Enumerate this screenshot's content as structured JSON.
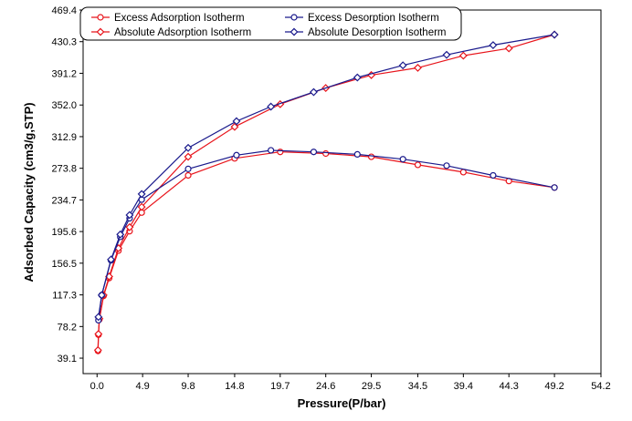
{
  "chart_data": {
    "type": "line",
    "title": "",
    "xlabel": "Pressure(P/bar)",
    "ylabel": "Adsorbed Capacity (cm3/g,STP)",
    "xlim": [
      -1.5,
      54.2
    ],
    "ylim": [
      20,
      469.4
    ],
    "x_ticks": [
      0.0,
      4.9,
      9.8,
      14.8,
      19.7,
      24.6,
      29.5,
      34.5,
      39.4,
      44.3,
      49.2,
      54.2
    ],
    "x_tick_labels": [
      "0.0",
      "4.9",
      "9.8",
      "14.8",
      "19.7",
      "24.6",
      "29.5",
      "34.5",
      "39.4",
      "44.3",
      "49.2",
      "54.2"
    ],
    "y_ticks": [
      39.1,
      78.2,
      117.3,
      156.5,
      195.6,
      234.7,
      273.8,
      312.9,
      352.0,
      391.2,
      430.3,
      469.4
    ],
    "y_tick_labels": [
      "39.1",
      "78.2",
      "117.3",
      "156.5",
      "195.6",
      "234.7",
      "273.8",
      "312.9",
      "352.0",
      "391.2",
      "430.3",
      "469.4"
    ],
    "legend_position": "top-left",
    "grid": false,
    "series": [
      {
        "name": "Excess Adsorption Isotherm",
        "color": "#e8141b",
        "marker": "circle",
        "x": [
          0.1,
          0.15,
          0.25,
          0.7,
          1.3,
          2.3,
          3.5,
          4.8,
          9.8,
          14.8,
          19.7,
          24.6,
          29.5,
          34.5,
          39.4,
          44.3,
          49.2
        ],
        "y": [
          48,
          68,
          87,
          116,
          138,
          172,
          196,
          219,
          265,
          286,
          294,
          292,
          288,
          278,
          269,
          258,
          250
        ]
      },
      {
        "name": "Absolute Adsorption Isotherm",
        "color": "#e8141b",
        "marker": "diamond",
        "x": [
          0.1,
          0.15,
          0.25,
          0.7,
          1.3,
          2.3,
          3.5,
          4.8,
          9.8,
          14.8,
          19.7,
          24.6,
          29.5,
          34.5,
          39.4,
          44.3,
          49.2
        ],
        "y": [
          49,
          69,
          88,
          117,
          140,
          175,
          201,
          226,
          288,
          325,
          353,
          373,
          389,
          398,
          413,
          422,
          439
        ]
      },
      {
        "name": "Excess Desorption Isotherm",
        "color": "#1a1a8c",
        "marker": "circle",
        "x": [
          49.2,
          42.6,
          37.6,
          32.9,
          28.0,
          23.3,
          18.7,
          15.0,
          9.8,
          4.8,
          3.5,
          2.5,
          1.5,
          0.5,
          0.15
        ],
        "y": [
          250,
          265,
          277,
          285,
          291,
          294,
          296,
          290,
          273,
          235,
          212,
          189,
          160,
          117,
          86
        ]
      },
      {
        "name": "Absolute Desorption Isotherm",
        "color": "#1a1a8c",
        "marker": "diamond",
        "x": [
          49.2,
          42.6,
          37.6,
          32.9,
          28.0,
          23.3,
          18.7,
          15.0,
          9.8,
          4.8,
          3.5,
          2.5,
          1.5,
          0.5,
          0.15
        ],
        "y": [
          439,
          426,
          414,
          401,
          386,
          368,
          350,
          332,
          299,
          242,
          216,
          192,
          161,
          117,
          90
        ]
      }
    ]
  }
}
